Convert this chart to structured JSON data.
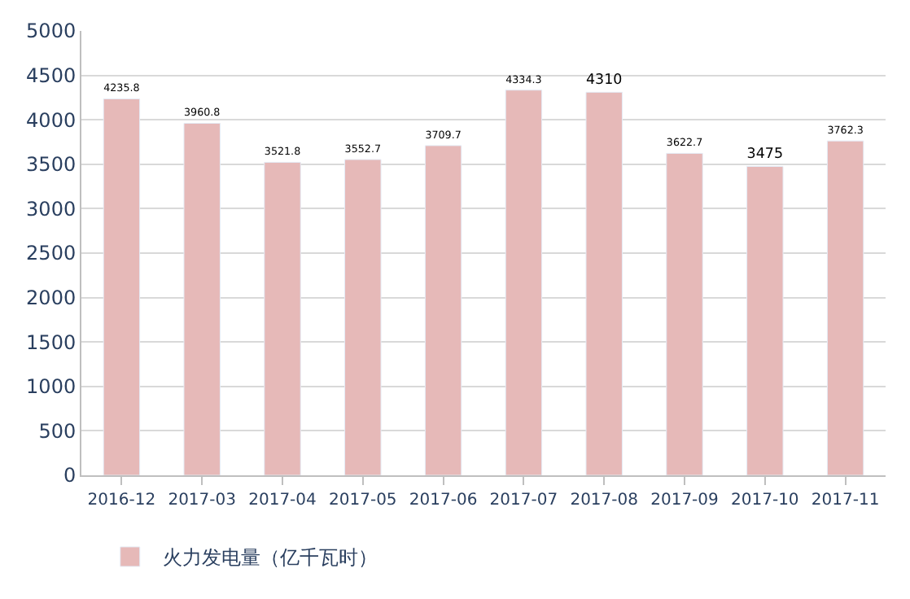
{
  "chart_data": {
    "type": "bar",
    "categories": [
      "2016-12",
      "2017-03",
      "2017-04",
      "2017-05",
      "2017-06",
      "2017-07",
      "2017-08",
      "2017-09",
      "2017-10",
      "2017-11"
    ],
    "series": [
      {
        "name": "火力发电量（亿千瓦时）",
        "color": "#e6b9b8",
        "values": [
          4235.8,
          3960.8,
          3521.8,
          3552.7,
          3709.7,
          4334.3,
          4310,
          3622.7,
          3475,
          3762.3
        ]
      }
    ],
    "ylim": [
      0,
      5000
    ],
    "yticks": [
      0,
      500,
      1000,
      1500,
      2000,
      2500,
      3000,
      3500,
      4000,
      4500,
      5000
    ],
    "grid": "y",
    "legend": "bottom left",
    "data_labels": true
  }
}
